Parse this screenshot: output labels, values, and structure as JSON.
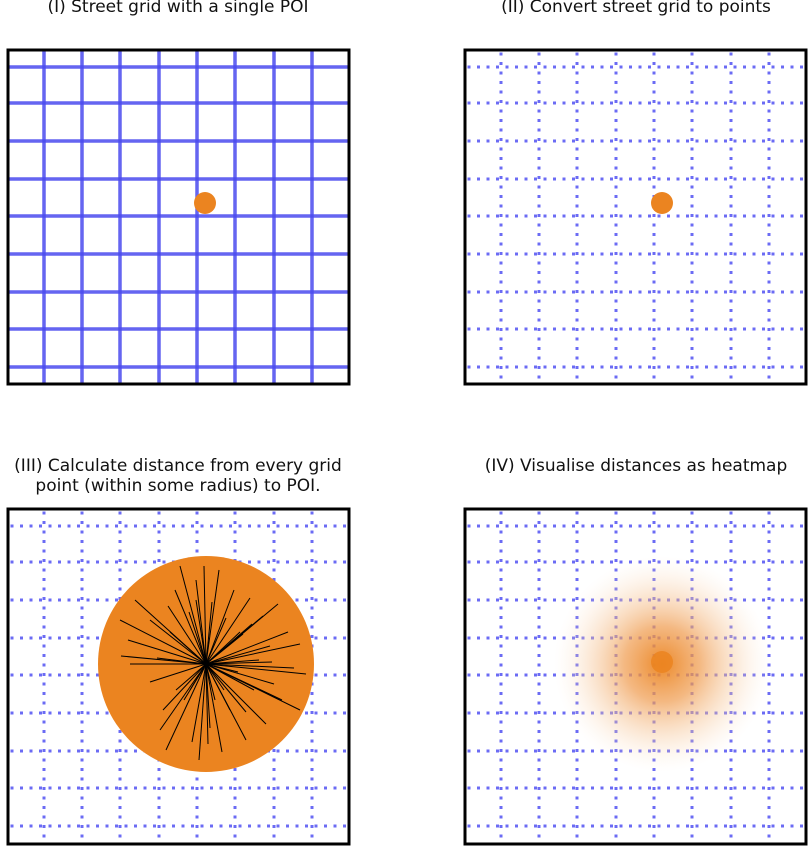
{
  "panels": [
    {
      "id": "I",
      "title": "(I) Street grid with a single POI",
      "mode": "grid"
    },
    {
      "id": "II",
      "title": "(II) Convert street grid to points",
      "mode": "points"
    },
    {
      "id": "III",
      "title": "(III) Calculate distance from every grid\npoint (within some radius) to POI.",
      "mode": "distances"
    },
    {
      "id": "IV",
      "title": "(IV) Visualise distances as heatmap",
      "mode": "heatmap"
    }
  ],
  "colors": {
    "street": "#4a4aee",
    "point": "#3a3af0",
    "poi": "#eb8420",
    "frame": "#000000",
    "distance_line": "#000000"
  }
}
